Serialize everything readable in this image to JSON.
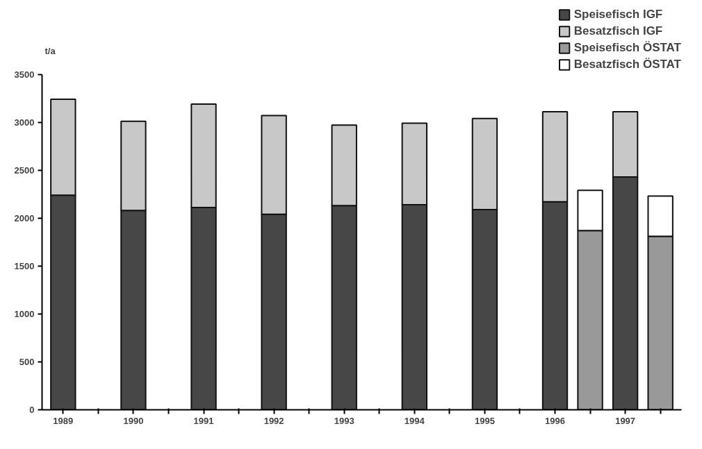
{
  "chart_data": {
    "type": "bar",
    "stacked": true,
    "ylabel": "t/a",
    "categories": [
      "1989",
      null,
      "1990",
      null,
      "1991",
      null,
      "1992",
      null,
      "1993",
      null,
      "1994",
      null,
      "1995",
      null,
      "1996",
      null,
      "1997",
      null
    ],
    "series": [
      {
        "name": "Speisefisch IGF",
        "color": "#474747",
        "values": [
          2240,
          null,
          2080,
          null,
          2110,
          null,
          2040,
          null,
          2130,
          null,
          2140,
          null,
          2090,
          null,
          2170,
          null,
          2430,
          null
        ]
      },
      {
        "name": "Besatzfisch IGF",
        "color": "#c8c8c8",
        "values": [
          1000,
          null,
          930,
          null,
          1080,
          null,
          1030,
          null,
          840,
          null,
          850,
          null,
          950,
          null,
          940,
          null,
          680,
          null
        ]
      },
      {
        "name": "Speisefisch ÖSTAT",
        "color": "#999999",
        "values": [
          null,
          null,
          null,
          null,
          null,
          null,
          null,
          null,
          null,
          null,
          null,
          null,
          null,
          null,
          null,
          1870,
          null,
          1810
        ]
      },
      {
        "name": "Besatzfisch ÖSTAT",
        "color": "#ffffff",
        "values": [
          null,
          null,
          null,
          null,
          null,
          null,
          null,
          null,
          null,
          null,
          null,
          null,
          null,
          null,
          null,
          420,
          null,
          420
        ]
      }
    ],
    "ylim": [
      0,
      3500
    ],
    "yticks": [
      0,
      500,
      1000,
      1500,
      2000,
      2500,
      3000,
      3500
    ],
    "grid": false,
    "legend": "top right"
  }
}
